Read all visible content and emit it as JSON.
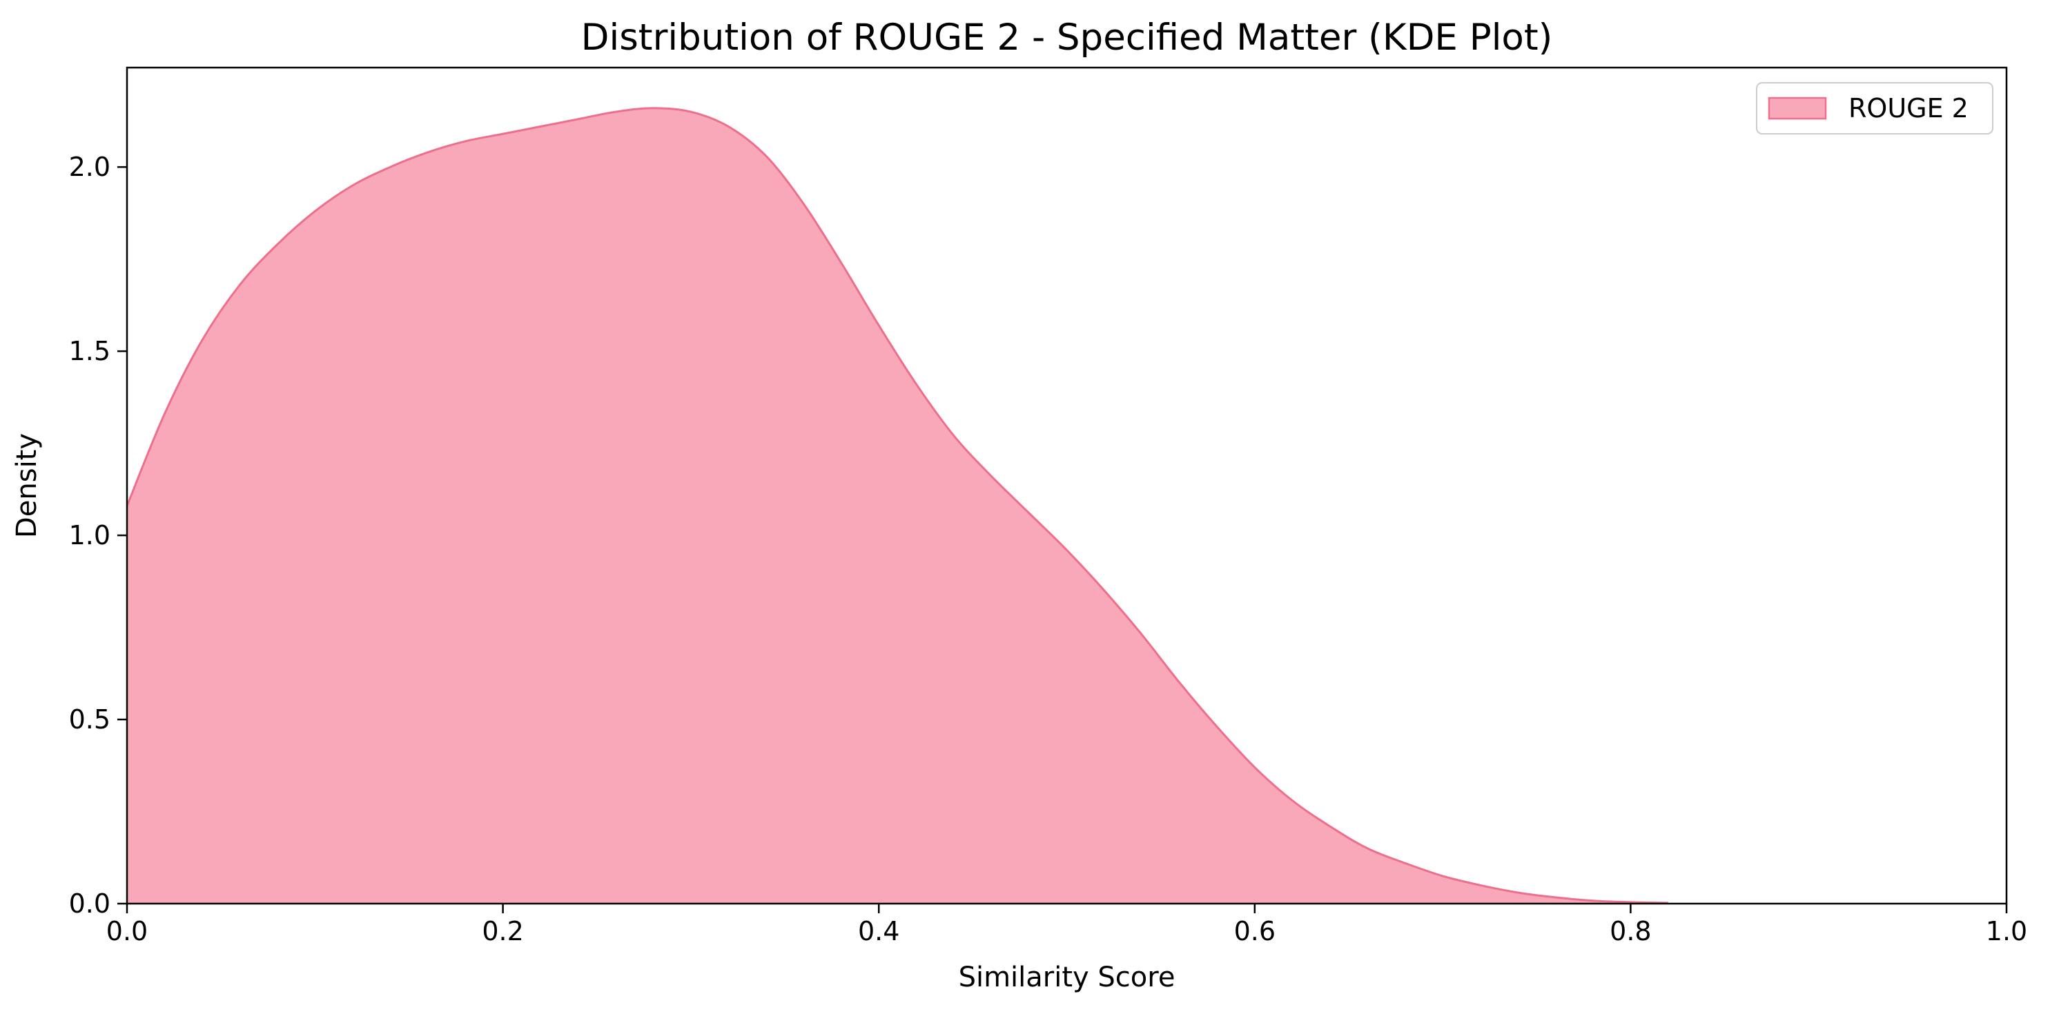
{
  "chart_data": {
    "type": "area",
    "title": "Distribution of ROUGE 2 - Specified Matter (KDE Plot)",
    "xlabel": "Similarity Score",
    "ylabel": "Density",
    "xlim": [
      0.0,
      1.0
    ],
    "ylim": [
      0.0,
      2.27
    ],
    "x_ticks": [
      0.0,
      0.2,
      0.4,
      0.6,
      0.8,
      1.0
    ],
    "x_tick_labels": [
      "0.0",
      "0.2",
      "0.4",
      "0.6",
      "0.8",
      "1.0"
    ],
    "y_ticks": [
      0.0,
      0.5,
      1.0,
      1.5,
      2.0
    ],
    "y_tick_labels": [
      "0.0",
      "0.5",
      "1.0",
      "1.5",
      "2.0"
    ],
    "grid": false,
    "legend_position": "top-right",
    "series": [
      {
        "name": "ROUGE 2",
        "fill_color": "#f8a8b8",
        "line_color": "#ee6f8c",
        "x": [
          0.0,
          0.02,
          0.04,
          0.06,
          0.08,
          0.1,
          0.12,
          0.14,
          0.16,
          0.18,
          0.2,
          0.22,
          0.24,
          0.26,
          0.28,
          0.3,
          0.32,
          0.34,
          0.36,
          0.38,
          0.4,
          0.42,
          0.44,
          0.46,
          0.48,
          0.5,
          0.52,
          0.54,
          0.56,
          0.58,
          0.6,
          0.62,
          0.64,
          0.66,
          0.68,
          0.7,
          0.72,
          0.74,
          0.76,
          0.78,
          0.8,
          0.82
        ],
        "y": [
          1.08,
          1.33,
          1.53,
          1.68,
          1.79,
          1.88,
          1.95,
          2.0,
          2.04,
          2.07,
          2.09,
          2.11,
          2.13,
          2.15,
          2.16,
          2.15,
          2.11,
          2.03,
          1.9,
          1.74,
          1.57,
          1.41,
          1.27,
          1.16,
          1.06,
          0.96,
          0.85,
          0.73,
          0.6,
          0.48,
          0.37,
          0.28,
          0.21,
          0.15,
          0.11,
          0.075,
          0.05,
          0.03,
          0.017,
          0.008,
          0.004,
          0.002
        ]
      }
    ]
  }
}
